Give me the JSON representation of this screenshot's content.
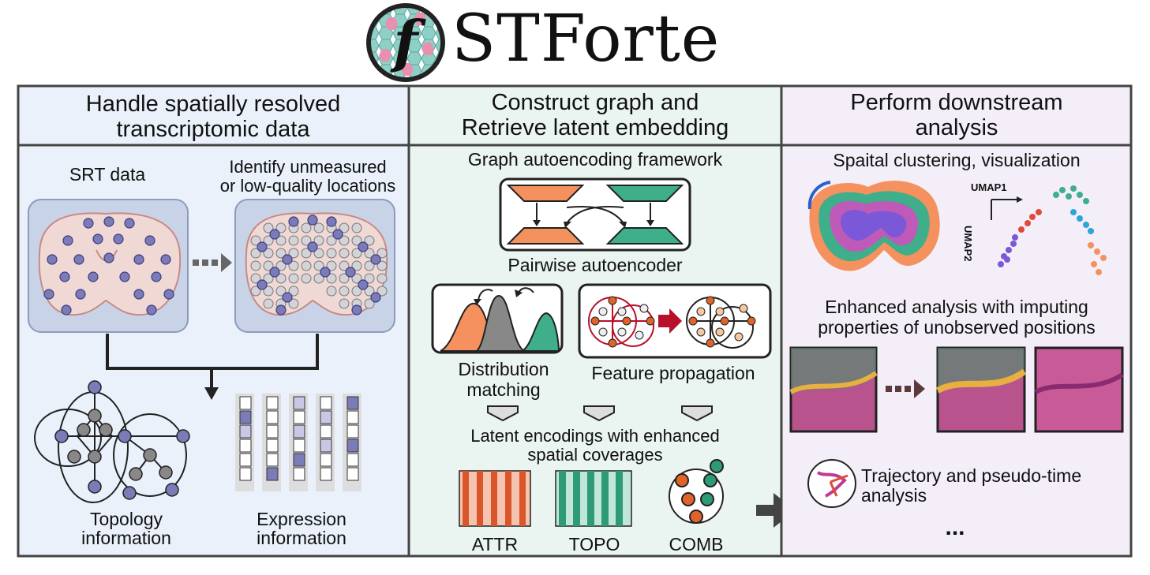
{
  "logo": {
    "letter": "f",
    "word": "STForte"
  },
  "panels": {
    "left": {
      "title_l1": "Handle spatially resolved",
      "title_l2": "transcriptomic data",
      "srt_label": "SRT data",
      "identify_l1": "Identify unmeasured",
      "identify_l2": "or low-quality locations",
      "topology_l1": "Topology",
      "topology_l2": "information",
      "expression_l1": "Expression",
      "expression_l2": "information"
    },
    "middle": {
      "title_l1": "Construct graph and",
      "title_l2": "Retrieve latent embedding",
      "framework": "Graph autoencoding framework",
      "pairwise": "Pairwise autoencoder",
      "dist_l1": "Distribution",
      "dist_l2": "matching",
      "feature": "Feature propagation",
      "latent_l1": "Latent encodings with enhanced",
      "latent_l2": "spatial coverages",
      "attr": "ATTR",
      "topo": "TOPO",
      "comb": "COMB"
    },
    "right": {
      "title_l1": "Perform downstream",
      "title_l2": "analysis",
      "clustering": "Spaital clustering, visualization",
      "umap1": "UMAP1",
      "umap2": "UMAP2",
      "enhanced_l1": "Enhanced analysis with imputing",
      "enhanced_l2": "properties of unobserved positions",
      "trajectory_l1": "Trajectory and pseudo-time",
      "trajectory_l2": "analysis",
      "ellipsis": "..."
    }
  },
  "colors": {
    "left_bg": "#eaf1fb",
    "middle_bg": "#eaf4f0",
    "right_bg": "#f4eef8",
    "orange": "#f4915e",
    "teal": "#3fae8a",
    "purple_dot": "#7b7bb8",
    "dark_red": "#b8102a"
  }
}
